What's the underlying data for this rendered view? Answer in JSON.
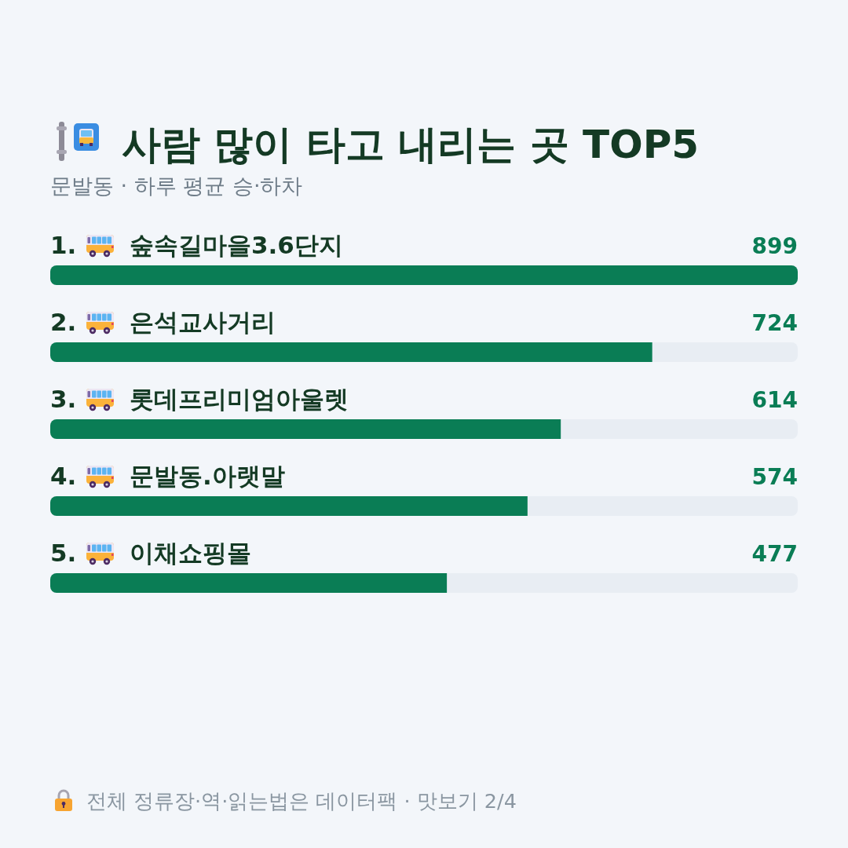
{
  "chart_data": {
    "type": "bar",
    "orientation": "horizontal",
    "title": "사람 많이 타고 내리는 곳 TOP5",
    "subtitle": "문발동 · 하루 평균 승·하차",
    "categories": [
      "1. 숲속길마을3.6단지",
      "2. 은석교사거리",
      "3. 롯데프리미엄아울렛",
      "4. 문발동.아랫말",
      "5. 이채쇼핑몰"
    ],
    "values": [
      899,
      724,
      614,
      574,
      477
    ],
    "color": "#0a7d55",
    "xlim": [
      0,
      899
    ],
    "data_labels": true,
    "tick_labels": "y",
    "annotations": [
      "전체 정류장·역·읽는법은 데이터팩 · 맛보기 2/4"
    ]
  }
}
